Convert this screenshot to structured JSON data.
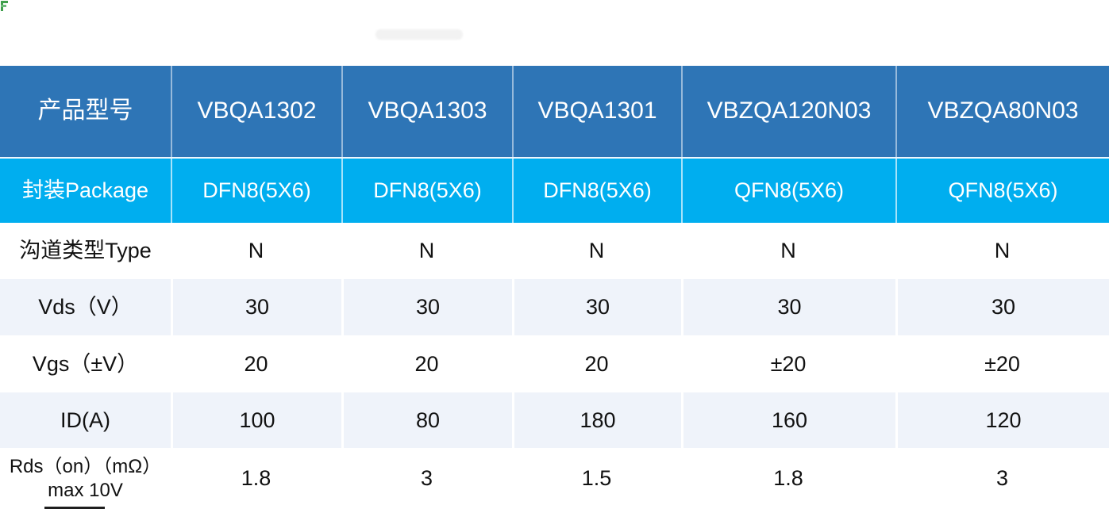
{
  "colors": {
    "header_bg": "#2e75b6",
    "package_row_bg": "#00aeef",
    "alt_row_bg": "#eff3fa",
    "header_text": "#ffffff",
    "body_text": "#111111",
    "corner_mark_green": "#3f9e4b"
  },
  "table": {
    "header": {
      "label": "产品型号",
      "products": [
        "VBQA1302",
        "VBQA1303",
        "VBQA1301",
        "VBZQA120N03",
        "VBZQA80N03"
      ]
    },
    "rows": [
      {
        "label": "封装Package",
        "values": [
          "DFN8(5X6)",
          "DFN8(5X6)",
          "DFN8(5X6)",
          "QFN8(5X6)",
          "QFN8(5X6)"
        ]
      },
      {
        "label": "沟道类型Type",
        "values": [
          "N",
          "N",
          "N",
          "N",
          "N"
        ]
      },
      {
        "label": "Vds（V）",
        "values": [
          "30",
          "30",
          "30",
          "30",
          "30"
        ]
      },
      {
        "label": "Vgs（±V）",
        "values": [
          "20",
          "20",
          "20",
          "±20",
          "±20"
        ]
      },
      {
        "label": "ID(A)",
        "values": [
          "100",
          "80",
          "180",
          "160",
          "120"
        ]
      },
      {
        "label": "Rds（on）（mΩ）max 10V",
        "values": [
          "1.8",
          "3",
          "1.5",
          "1.8",
          "3"
        ]
      }
    ]
  }
}
